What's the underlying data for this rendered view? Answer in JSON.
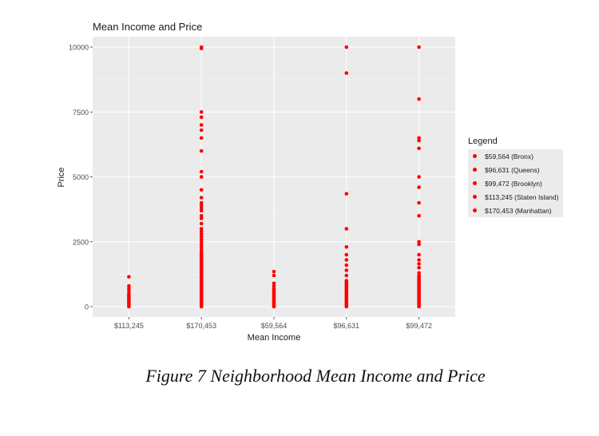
{
  "chart_data": {
    "type": "scatter",
    "title": "Mean Income and Price",
    "xlabel": "Mean Income",
    "ylabel": "Price",
    "categories": [
      "$113,245",
      "$170,453",
      "$59,564",
      "$96,631",
      "$99,472"
    ],
    "ylim": [
      -400,
      10400
    ],
    "yticks": [
      0,
      2500,
      5000,
      7500,
      10000
    ],
    "grid": true,
    "point_color": "#ff0000",
    "panel_background": "#ebebeb",
    "legend": {
      "title": "Legend",
      "placement": "right",
      "entries": [
        "$59,564 (Bronx)",
        "$96,631 (Queens)",
        "$99,472 (Brooklyn)",
        "$113,245 (Staten Island)",
        "$170,453 (Manhattan)"
      ]
    },
    "series": [
      {
        "category": "$113,245",
        "values": [
          0,
          50,
          100,
          150,
          200,
          250,
          300,
          350,
          400,
          450,
          500,
          600,
          700,
          800,
          1150
        ]
      },
      {
        "category": "$170,453",
        "values": [
          0,
          50,
          100,
          150,
          200,
          250,
          300,
          350,
          400,
          450,
          500,
          550,
          600,
          650,
          700,
          750,
          800,
          850,
          900,
          950,
          1000,
          1050,
          1100,
          1150,
          1200,
          1250,
          1300,
          1350,
          1400,
          1450,
          1500,
          1550,
          1600,
          1650,
          1700,
          1750,
          1800,
          1850,
          1900,
          1950,
          2000,
          2050,
          2100,
          2200,
          2300,
          2400,
          2500,
          2600,
          2700,
          2800,
          2900,
          3000,
          3200,
          3400,
          3500,
          3700,
          3800,
          3900,
          4000,
          4200,
          4500,
          5000,
          5200,
          6000,
          6500,
          6800,
          7000,
          7300,
          7500,
          9950,
          10000
        ]
      },
      {
        "category": "$59,564",
        "values": [
          0,
          50,
          100,
          150,
          200,
          250,
          300,
          350,
          400,
          450,
          500,
          550,
          600,
          650,
          700,
          800,
          900,
          1200,
          1350
        ]
      },
      {
        "category": "$96,631",
        "values": [
          0,
          50,
          100,
          150,
          200,
          250,
          300,
          350,
          400,
          450,
          500,
          550,
          600,
          650,
          700,
          750,
          800,
          850,
          900,
          950,
          1000,
          1200,
          1400,
          1600,
          1800,
          2000,
          2300,
          3000,
          4350,
          9000,
          10000
        ]
      },
      {
        "category": "$99,472",
        "values": [
          0,
          50,
          100,
          150,
          200,
          250,
          300,
          350,
          400,
          450,
          500,
          550,
          600,
          650,
          700,
          750,
          800,
          850,
          900,
          950,
          1000,
          1050,
          1100,
          1150,
          1200,
          1300,
          1500,
          1650,
          1800,
          2000,
          2400,
          2500,
          3500,
          4000,
          4600,
          5000,
          6100,
          6400,
          6500,
          8000,
          10000
        ]
      }
    ]
  },
  "caption": "Figure 7 Neighborhood Mean Income and Price"
}
